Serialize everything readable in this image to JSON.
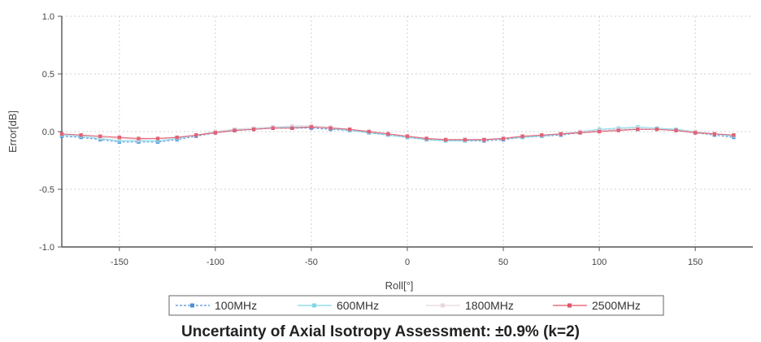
{
  "caption": "Uncertainty of Axial Isotropy Assessment: ±0.9% (k=2)",
  "chart_data": {
    "type": "line",
    "title": "",
    "xlabel": "Roll[°]",
    "ylabel": "Error[dB]",
    "xlim": [
      -180,
      180
    ],
    "ylim": [
      -1.0,
      1.0
    ],
    "xticks": [
      -150,
      -100,
      -50,
      0,
      50,
      100,
      150
    ],
    "xtick_labels": [
      "-150",
      "-100",
      "-50",
      "0",
      "50",
      "100",
      "150"
    ],
    "yticks": [
      1.0,
      0.5,
      0.0,
      -0.5,
      -1.0
    ],
    "ytick_labels": [
      "1.0",
      "0.5",
      "0.0",
      "-0.5",
      "-1.0"
    ],
    "grid": true,
    "legend_position": "bottom",
    "x": [
      -180,
      -170,
      -160,
      -150,
      -140,
      -130,
      -120,
      -110,
      -100,
      -90,
      -80,
      -70,
      -60,
      -50,
      -40,
      -30,
      -20,
      -10,
      0,
      10,
      20,
      30,
      40,
      50,
      60,
      70,
      80,
      90,
      100,
      110,
      120,
      130,
      140,
      150,
      160,
      170
    ],
    "series": [
      {
        "name": "100MHz",
        "color": "#4f8fd9",
        "values": [
          -0.04,
          -0.05,
          -0.07,
          -0.09,
          -0.09,
          -0.09,
          -0.07,
          -0.04,
          -0.01,
          0.01,
          0.02,
          0.03,
          0.03,
          0.03,
          0.02,
          0.01,
          -0.01,
          -0.03,
          -0.05,
          -0.07,
          -0.08,
          -0.08,
          -0.08,
          -0.07,
          -0.05,
          -0.04,
          -0.03,
          -0.01,
          0.01,
          0.02,
          0.02,
          0.02,
          0.01,
          -0.01,
          -0.03,
          -0.05
        ]
      },
      {
        "name": "600MHz",
        "color": "#7fd6e8",
        "values": [
          -0.03,
          -0.04,
          -0.06,
          -0.08,
          -0.08,
          -0.08,
          -0.06,
          -0.03,
          0.0,
          0.02,
          0.03,
          0.04,
          0.04,
          0.04,
          0.03,
          0.01,
          -0.01,
          -0.03,
          -0.05,
          -0.07,
          -0.08,
          -0.08,
          -0.07,
          -0.06,
          -0.05,
          -0.04,
          -0.02,
          0.0,
          0.02,
          0.03,
          0.04,
          0.03,
          0.02,
          0.0,
          -0.02,
          -0.04
        ]
      },
      {
        "name": "1800MHz",
        "color": "#e8d6dc",
        "values": [
          -0.02,
          -0.03,
          -0.05,
          -0.06,
          -0.07,
          -0.06,
          -0.05,
          -0.03,
          0.0,
          0.02,
          0.03,
          0.04,
          0.05,
          0.05,
          0.04,
          0.02,
          0.0,
          -0.02,
          -0.04,
          -0.06,
          -0.07,
          -0.07,
          -0.07,
          -0.06,
          -0.04,
          -0.03,
          -0.02,
          0.0,
          0.01,
          0.02,
          0.03,
          0.02,
          0.01,
          0.0,
          -0.02,
          -0.03
        ]
      },
      {
        "name": "2500MHz",
        "color": "#e0556a",
        "values": [
          -0.02,
          -0.03,
          -0.04,
          -0.05,
          -0.06,
          -0.06,
          -0.05,
          -0.03,
          -0.01,
          0.01,
          0.02,
          0.03,
          0.03,
          0.04,
          0.03,
          0.02,
          0.0,
          -0.02,
          -0.04,
          -0.06,
          -0.07,
          -0.07,
          -0.07,
          -0.06,
          -0.04,
          -0.03,
          -0.02,
          -0.01,
          0.0,
          0.01,
          0.02,
          0.02,
          0.01,
          -0.01,
          -0.02,
          -0.03
        ]
      }
    ]
  }
}
